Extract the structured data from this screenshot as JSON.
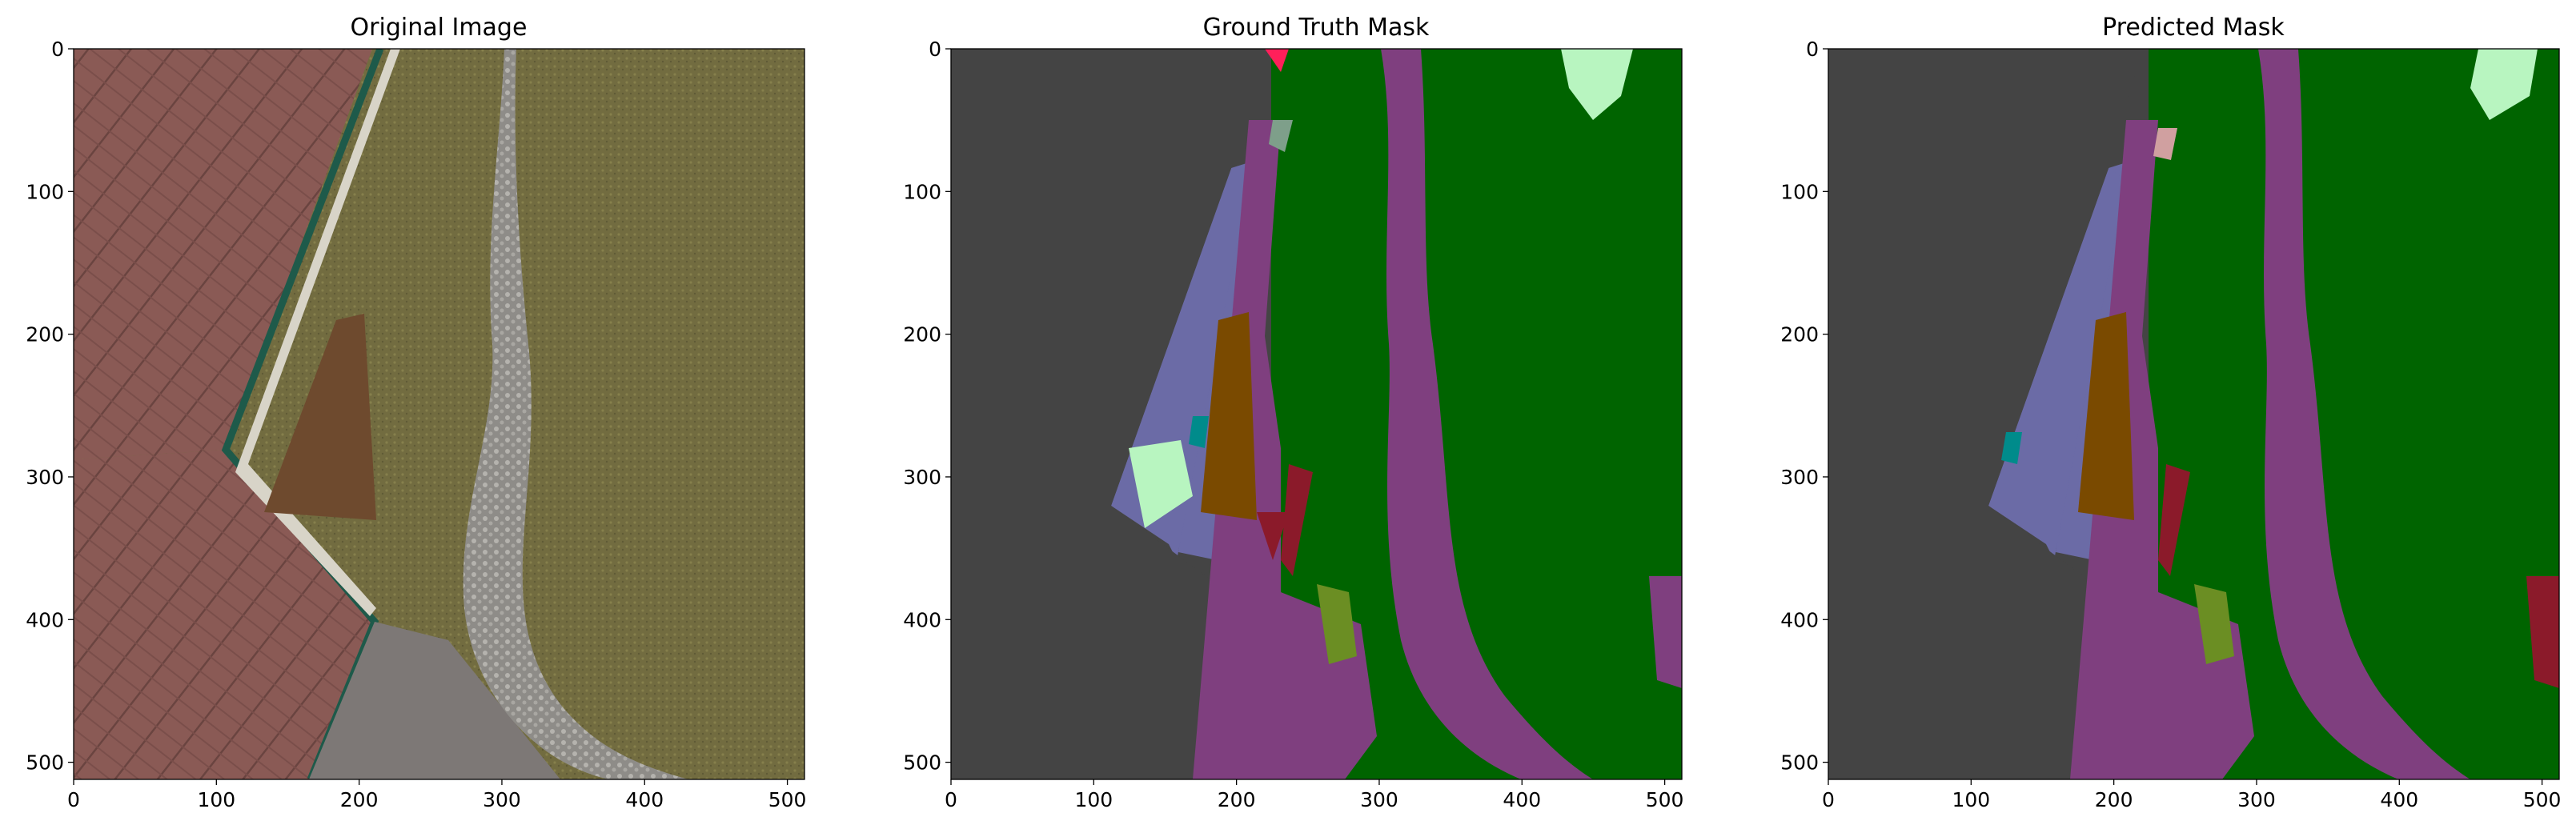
{
  "chart_data": [
    {
      "type": "heatmap",
      "title": "Original Image",
      "content": "aerial photograph",
      "xlim": [
        0,
        512
      ],
      "ylim": [
        512,
        0
      ],
      "xticks": [
        0,
        100,
        200,
        300,
        400,
        500
      ],
      "yticks": [
        0,
        100,
        200,
        300,
        400,
        500
      ],
      "xlabel": "",
      "ylabel": ""
    },
    {
      "type": "heatmap",
      "title": "Ground Truth Mask",
      "content": "segmentation mask",
      "xlim": [
        0,
        512
      ],
      "ylim": [
        512,
        0
      ],
      "xticks": [
        0,
        100,
        200,
        300,
        400,
        500
      ],
      "yticks": [
        0,
        100,
        200,
        300,
        400,
        500
      ],
      "xlabel": "",
      "ylabel": ""
    },
    {
      "type": "heatmap",
      "title": "Predicted Mask",
      "content": "segmentation mask",
      "xlim": [
        0,
        512
      ],
      "ylim": [
        512,
        0
      ],
      "xticks": [
        0,
        100,
        200,
        300,
        400,
        500
      ],
      "yticks": [
        0,
        100,
        200,
        300,
        400,
        500
      ],
      "xlabel": "",
      "ylabel": ""
    }
  ],
  "colors": {
    "background": "#444444",
    "vegetation": "#006400",
    "paved_area": "#7f3f7f",
    "roof_edge": "#6b6ba6",
    "dirt": "#7a4a00",
    "tree": "#6b8e23",
    "obstacle": "#8b1a2a",
    "water": "#008b8b",
    "light_vegetation": "#b8f5c0",
    "person": "#ff1f5a",
    "rocks": "#7e9f8a",
    "bald_tree": "#d0a0a0",
    "roof_tile": "#8a5a55",
    "grass": "#6b6a3a",
    "path_stone": "#9c9c9c",
    "concrete": "#7d7876",
    "ledge": "#d8d4c8",
    "gutter": "#1e5a4a"
  }
}
